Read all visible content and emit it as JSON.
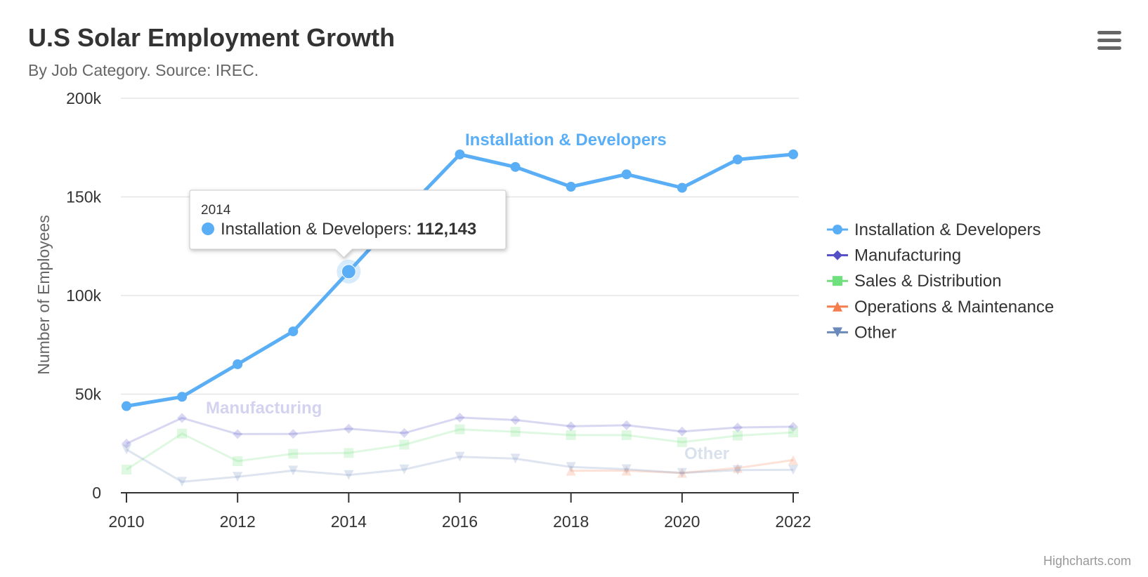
{
  "header": {
    "title": "U.S Solar Employment Growth",
    "subtitle": "By Job Category. Source: IREC.",
    "menu_icon": "hamburger-menu-icon"
  },
  "credits": "Highcharts.com",
  "chart_data": {
    "type": "line",
    "title": "U.S Solar Employment Growth",
    "subtitle": "By Job Category. Source: IREC.",
    "ylabel": "Number of Employees",
    "xlabel": "",
    "ylim": [
      0,
      200000
    ],
    "xlim": [
      2010,
      2022
    ],
    "grid": true,
    "legend_position": "right",
    "x_ticks": [
      "2010",
      "2012",
      "2014",
      "2016",
      "2018",
      "2020",
      "2022"
    ],
    "y_ticks": [
      "0",
      "50k",
      "100k",
      "150k",
      "200k"
    ],
    "x": [
      2010,
      2011,
      2012,
      2013,
      2014,
      2015,
      2016,
      2017,
      2018,
      2019,
      2020,
      2021,
      2022
    ],
    "series": [
      {
        "name": "Installation & Developers",
        "color": "#5aaef5",
        "marker": "circle",
        "label": "Installation & Developers",
        "values": [
          43934,
          48656,
          65165,
          81827,
          112143,
          142383,
          171533,
          165174,
          155157,
          161454,
          154610,
          168960,
          171558
        ]
      },
      {
        "name": "Manufacturing",
        "color": "#544fc5",
        "marker": "diamond",
        "label": "Manufacturing",
        "values": [
          24916,
          37941,
          29742,
          29851,
          32490,
          30282,
          38121,
          36885,
          33726,
          34243,
          31050,
          33099,
          33473
        ]
      },
      {
        "name": "Sales & Distribution",
        "color": "#6ee07d",
        "marker": "square",
        "label": "",
        "values": [
          11744,
          30000,
          16005,
          19771,
          20185,
          24377,
          32147,
          30912,
          29243,
          29213,
          25663,
          28978,
          30618
        ]
      },
      {
        "name": "Operations & Maintenance",
        "color": "#f47c4d",
        "marker": "triangle",
        "label": "",
        "values": [
          null,
          null,
          null,
          null,
          null,
          null,
          null,
          null,
          11164,
          11218,
          10077,
          12530,
          16585
        ]
      },
      {
        "name": "Other",
        "color": "#6b8abc",
        "marker": "triangle-down",
        "label": "Other",
        "values": [
          21908,
          5548,
          8105,
          11248,
          8989,
          11816,
          18274,
          17300,
          13053,
          11906,
          10073,
          11471,
          11648
        ]
      }
    ],
    "tooltip": {
      "header": "2014",
      "series_index": 0,
      "point_index": 4,
      "series_name": "Installation & Developers",
      "value_text": "112,143"
    }
  }
}
